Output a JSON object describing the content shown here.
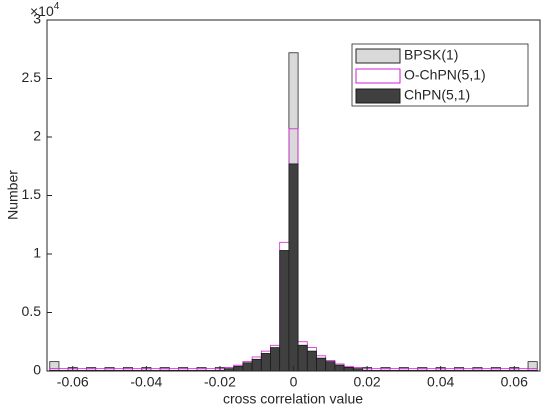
{
  "chart_data": {
    "type": "histogram",
    "xlabel": "cross correlation value",
    "ylabel": "Number",
    "y_multiplier": {
      "base": "×10",
      "exponent": "4"
    },
    "bins": [
      -0.06625,
      -0.06375,
      -0.06125,
      -0.05875,
      -0.05625,
      -0.05375,
      -0.05125,
      -0.04875,
      -0.04625,
      -0.04375,
      -0.04125,
      -0.03875,
      -0.03625,
      -0.03375,
      -0.03125,
      -0.02875,
      -0.02625,
      -0.02375,
      -0.02125,
      -0.01875,
      -0.01625,
      -0.01375,
      -0.01125,
      -0.00875,
      -0.00625,
      -0.00375,
      -0.00125,
      0.00125,
      0.00375,
      0.00625,
      0.00875,
      0.01125,
      0.01375,
      0.01625,
      0.01875,
      0.02125,
      0.02375,
      0.02625,
      0.02875,
      0.03125,
      0.03375,
      0.03625,
      0.03875,
      0.04125,
      0.04375,
      0.04625,
      0.04875,
      0.05125,
      0.05375,
      0.05625,
      0.05875,
      0.06125,
      0.06375,
      0.06625
    ],
    "series": [
      {
        "name": "BPSK(1)",
        "color": "#d9d9d9",
        "edge": "#262626",
        "values": [
          0.08,
          0,
          0.03,
          0,
          0.03,
          0,
          0.03,
          0,
          0.03,
          0,
          0.03,
          0,
          0.03,
          0,
          0.03,
          0,
          0.03,
          0,
          0.03,
          0,
          0.03,
          0,
          0.03,
          0,
          0.05,
          0.1,
          2.72,
          0.1,
          0.05,
          0,
          0.03,
          0,
          0.03,
          0,
          0.03,
          0,
          0.03,
          0,
          0.03,
          0,
          0.03,
          0,
          0.03,
          0,
          0.03,
          0,
          0.03,
          0,
          0.03,
          0,
          0.03,
          0,
          0.08
        ]
      },
      {
        "name": "O-ChPN(5,1)",
        "color": "none",
        "edge": "#d21fd8",
        "values": [
          0.02,
          0.02,
          0.02,
          0.02,
          0.02,
          0.02,
          0.02,
          0.02,
          0.02,
          0.02,
          0.02,
          0.02,
          0.02,
          0.02,
          0.02,
          0.02,
          0.02,
          0.02,
          0.02,
          0.03,
          0.05,
          0.08,
          0.12,
          0.17,
          0.22,
          1.1,
          2.07,
          0.25,
          0.2,
          0.13,
          0.09,
          0.06,
          0.04,
          0.03,
          0.02,
          0.02,
          0.02,
          0.02,
          0.02,
          0.02,
          0.02,
          0.02,
          0.02,
          0.02,
          0.02,
          0.02,
          0.02,
          0.02,
          0.02,
          0.02,
          0.02,
          0.02,
          0.02
        ]
      },
      {
        "name": "ChPN(5,1)",
        "color": "#404040",
        "edge": "#1a1a1a",
        "values": [
          0.005,
          0.005,
          0.005,
          0.005,
          0.005,
          0.005,
          0.005,
          0.005,
          0.005,
          0.005,
          0.005,
          0.005,
          0.005,
          0.005,
          0.005,
          0.005,
          0.005,
          0.005,
          0.005,
          0.02,
          0.04,
          0.07,
          0.1,
          0.15,
          0.2,
          1.03,
          1.77,
          0.22,
          0.17,
          0.11,
          0.08,
          0.05,
          0.03,
          0.02,
          0.005,
          0.005,
          0.005,
          0.005,
          0.005,
          0.005,
          0.005,
          0.005,
          0.005,
          0.005,
          0.005,
          0.005,
          0.005,
          0.005,
          0.005,
          0.005,
          0.005,
          0.005,
          0.005
        ]
      }
    ],
    "xlim": [
      -0.067,
      0.067
    ],
    "xticks": [
      -0.06,
      -0.04,
      -0.02,
      0,
      0.02,
      0.04,
      0.06
    ],
    "ylim": [
      0,
      3
    ],
    "yticks": [
      0,
      0.5,
      1,
      1.5,
      2,
      2.5,
      3
    ],
    "legend": "top-right"
  }
}
